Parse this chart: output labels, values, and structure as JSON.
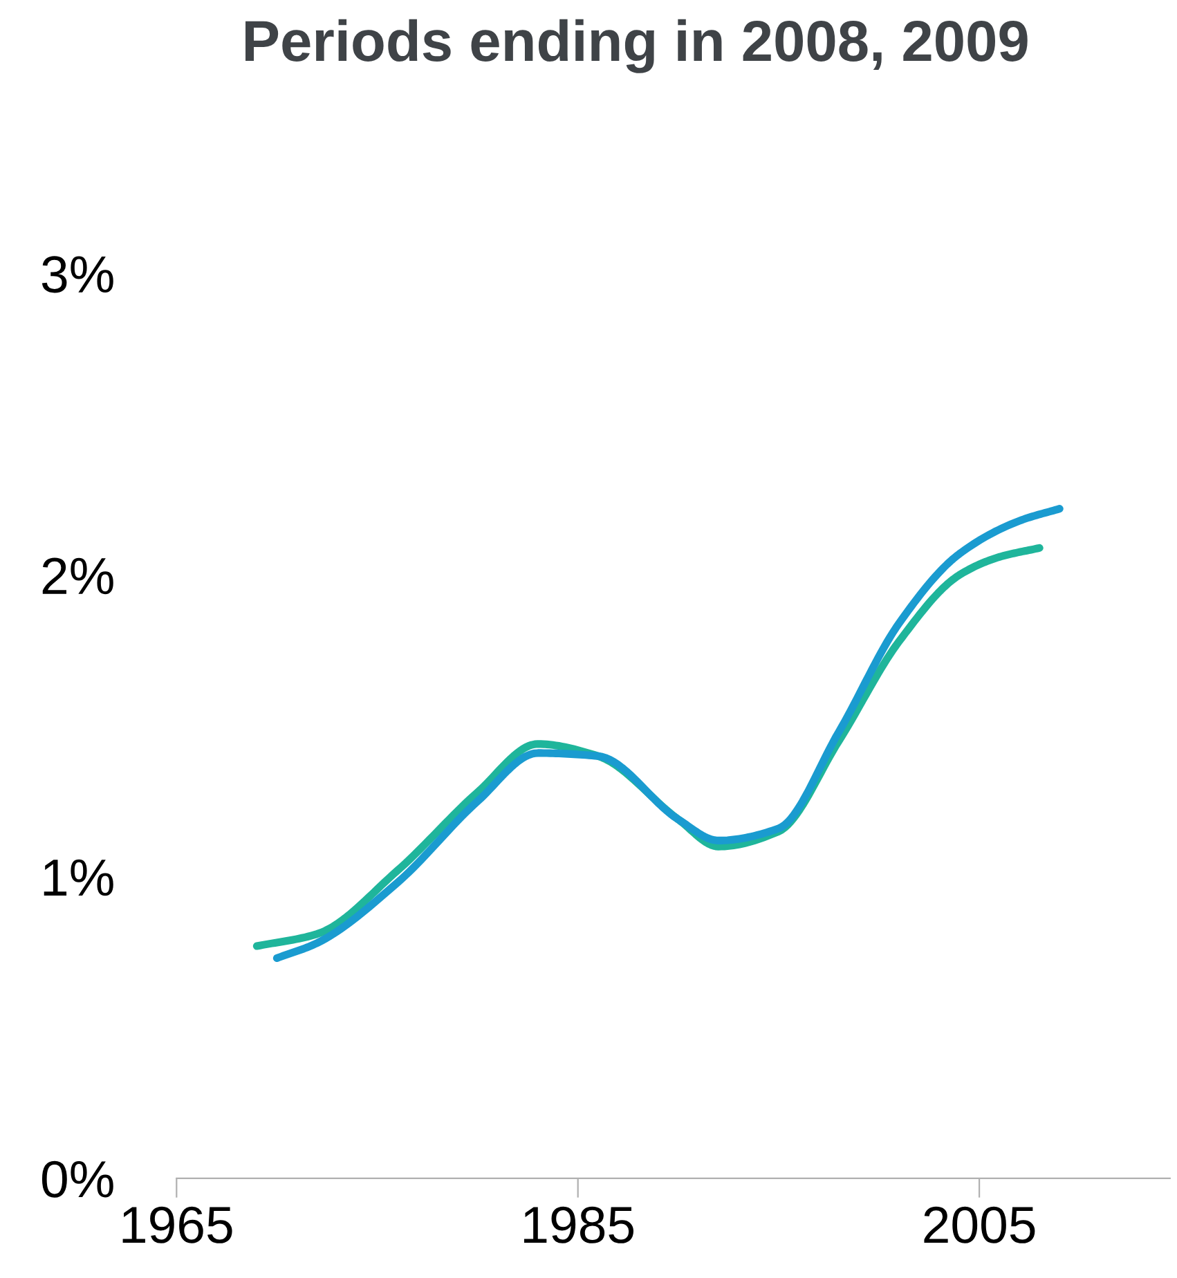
{
  "chart_data": {
    "type": "line",
    "title": "Periods ending in 2008, 2009",
    "series": [
      {
        "color": "#1fb59b",
        "x": [
          1969,
          1972,
          1976,
          1980,
          1983,
          1986,
          1990,
          1992,
          1995,
          1998,
          2001,
          2004,
          2006,
          2008
        ],
        "values": [
          0.77,
          0.81,
          1.02,
          1.28,
          1.44,
          1.4,
          1.19,
          1.1,
          1.15,
          1.45,
          1.78,
          2.0,
          2.06,
          2.09
        ]
      },
      {
        "color": "#1a9bd0",
        "x": [
          1970,
          1972,
          1976,
          1980,
          1983,
          1986,
          1990,
          1992,
          1995,
          1998,
          2001,
          2004,
          2007,
          2009
        ],
        "values": [
          0.73,
          0.78,
          0.98,
          1.25,
          1.41,
          1.4,
          1.19,
          1.12,
          1.16,
          1.48,
          1.84,
          2.07,
          2.18,
          2.22
        ]
      }
    ],
    "xlim": [
      1965,
      2014.5
    ],
    "xticks": [
      1965,
      1985,
      2005
    ],
    "ylim": [
      0,
      3
    ],
    "yticks": [
      {
        "value": 0,
        "label": "0%"
      },
      {
        "value": 1,
        "label": "1%"
      },
      {
        "value": 2,
        "label": "2%"
      },
      {
        "value": 3,
        "label": "3%"
      }
    ],
    "grid": false,
    "legend": false,
    "marker": "none",
    "line_style": "solid"
  }
}
